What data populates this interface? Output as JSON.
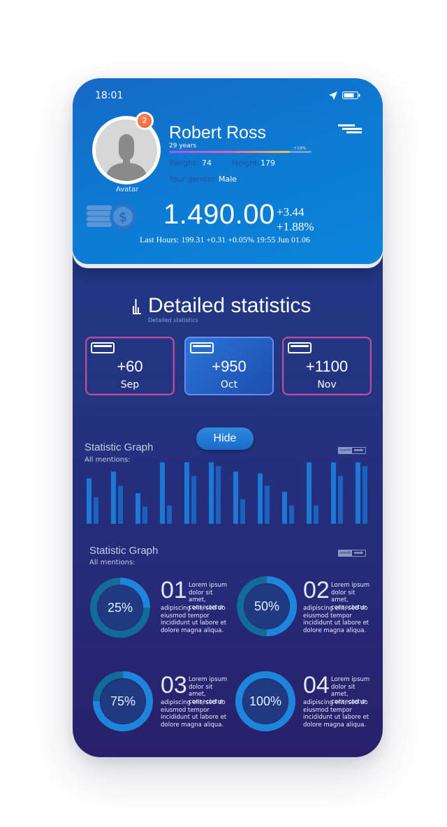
{
  "status_bar": {
    "time": "18:01"
  },
  "profile": {
    "notification_count": "2",
    "avatar_label": "Avatar",
    "name": "Robert Ross",
    "age": "29 years",
    "age_bar_percent": "+18%",
    "weight_label": "Weight:",
    "weight_value": "74",
    "height_label": "Height:",
    "height_value": "179",
    "gender_label": "Your gender:",
    "gender_value": "Male"
  },
  "balance": {
    "amount": "1.490.00",
    "delta_value": "+3.44",
    "delta_percent": "+1.88%",
    "last_hours": "Last Hours: 199.31 +0.31  +0.05%  19:55 Jun 01.06"
  },
  "section": {
    "title": "Detailed statistics",
    "subtitle": "Detailed statistics"
  },
  "month_cards": [
    {
      "value": "+60",
      "label": "Sep"
    },
    {
      "value": "+950",
      "label": "Oct"
    },
    {
      "value": "+1100",
      "label": "Nov"
    }
  ],
  "graph1": {
    "hide_label": "Hide",
    "title": "Statistic Graph",
    "subtitle": "All mentions:",
    "toggle": [
      "month",
      "week"
    ]
  },
  "chart_data": {
    "type": "bar",
    "title": "Statistic Graph",
    "series": [
      {
        "values": [
          0.74,
          0.85,
          0.5,
          1.0,
          1.0,
          1.0,
          0.85,
          0.82,
          0.52,
          1.0,
          1.0,
          1.0
        ]
      },
      {
        "values": [
          0.43,
          0.62,
          0.28,
          0.3,
          0.78,
          0.94,
          0.4,
          0.62,
          0.3,
          0.3,
          0.78,
          0.94
        ]
      }
    ],
    "colors": [
      "#1c78d4",
      "#1a62c0"
    ]
  },
  "graph2": {
    "title": "Statistic Graph",
    "subtitle": "All mentions:",
    "toggle": [
      "month",
      "week"
    ],
    "items": [
      {
        "percent": "25%",
        "value": 0.25,
        "number": "01",
        "text_a": "Lorem ipsum dolor sit amet, consectetur",
        "text_b": "adipiscing elit, sed do eiusmod tempor incididunt ut labore et dolore magna aliqua."
      },
      {
        "percent": "50%",
        "value": 0.5,
        "number": "02",
        "text_a": "Lorem ipsum dolor sit amet, consectetur",
        "text_b": "adipiscing elit, sed do eiusmod tempor incididunt ut labore et dolore magna aliqua."
      },
      {
        "percent": "75%",
        "value": 0.75,
        "number": "03",
        "text_a": "Lorem ipsum dolor sit amet, consectetur",
        "text_b": "adipiscing elit, sed do eiusmod tempor incididunt ut labore et dolore magna aliqua."
      },
      {
        "percent": "100%",
        "value": 1.0,
        "number": "04",
        "text_a": "Lorem ipsum dolor sit amet, consectetur",
        "text_b": "adipiscing elit, sed do eiusmod tempor incididunt ut labore et dolore magna aliqua."
      }
    ]
  },
  "colors": {
    "accent": "#1c78d4",
    "header": "#0d79d2",
    "background": "#223682"
  }
}
